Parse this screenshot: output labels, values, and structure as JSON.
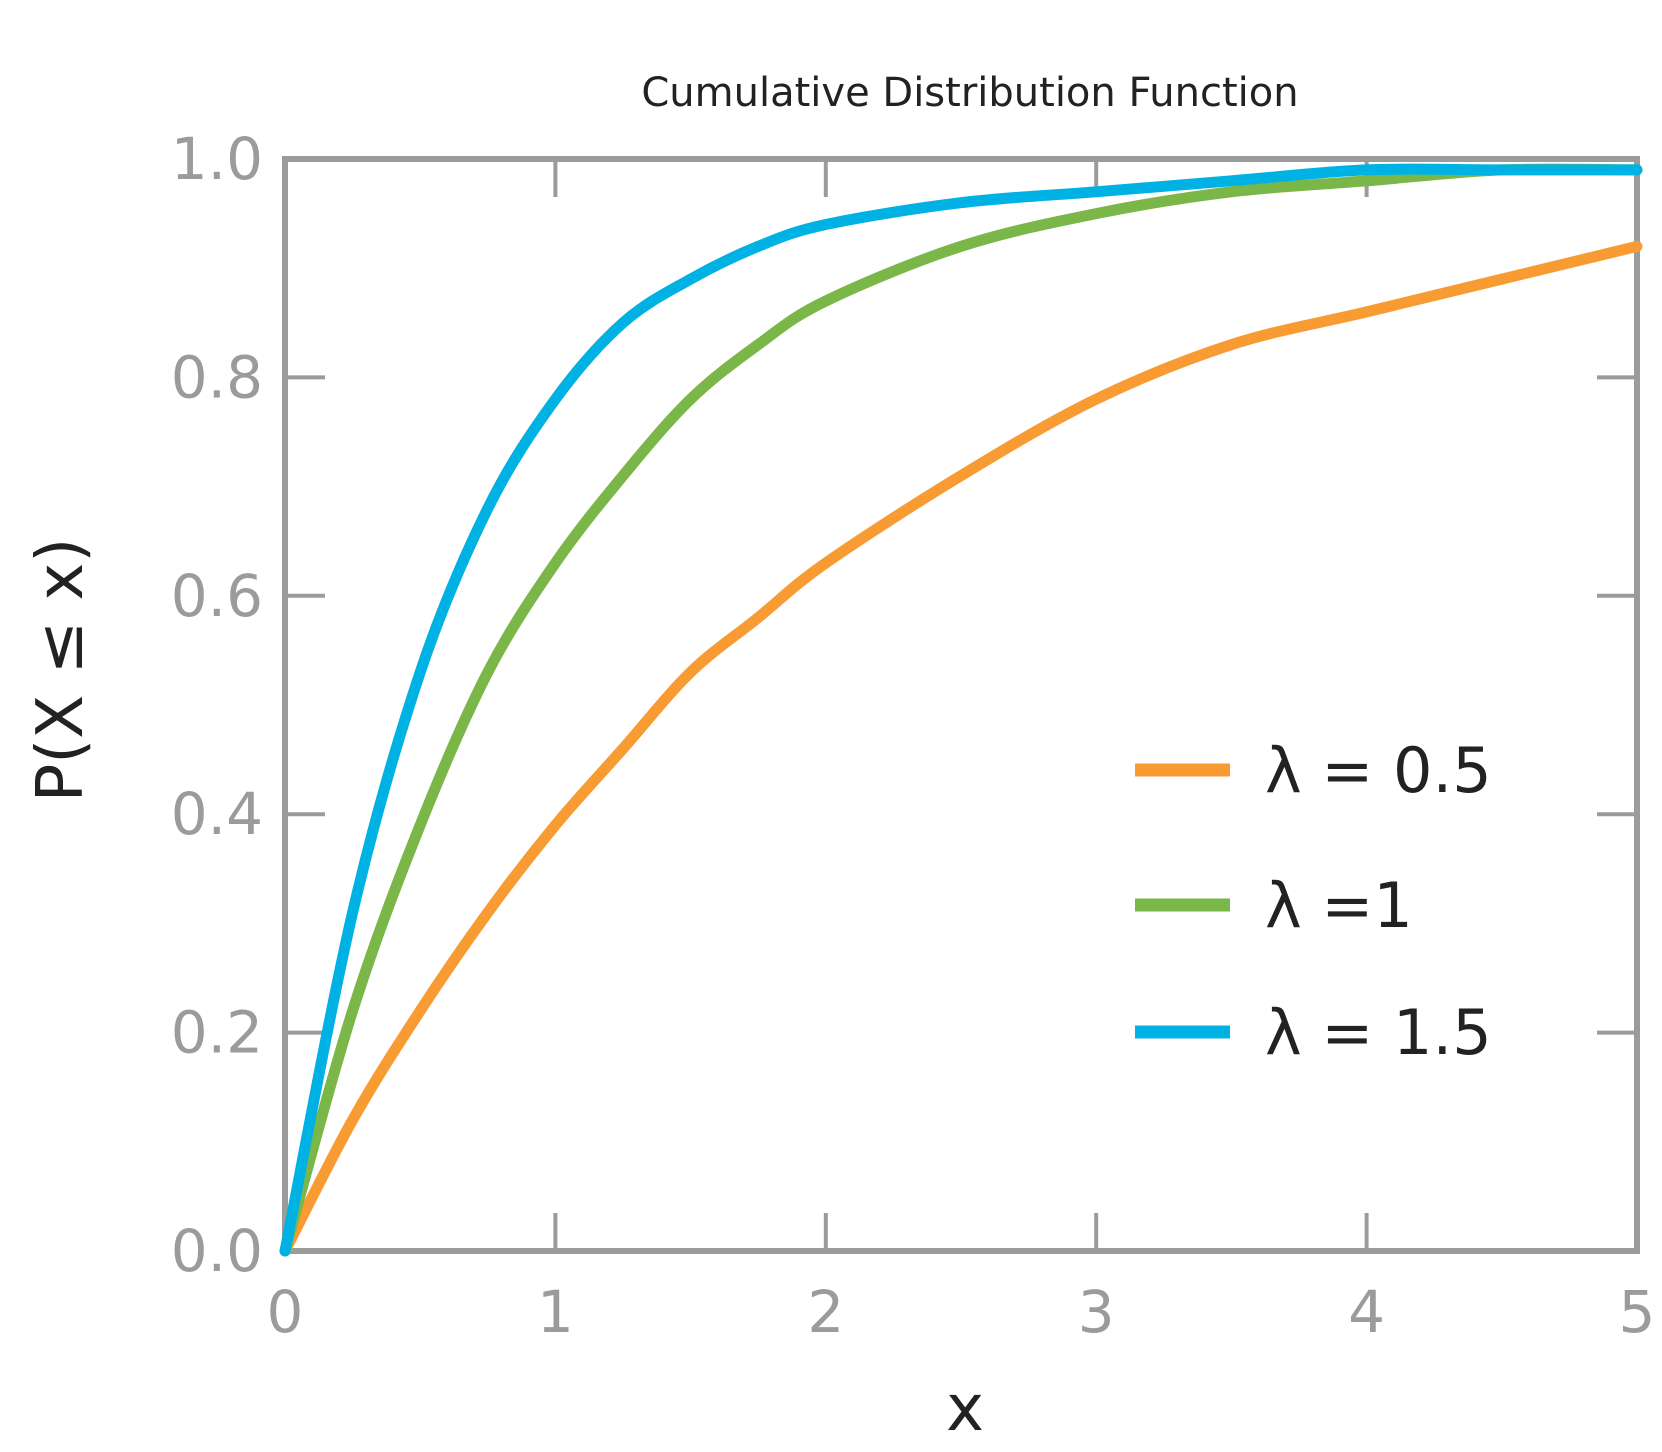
{
  "chart_data": {
    "type": "line",
    "title": "Cumulative Distribution Function",
    "xlabel": "x",
    "ylabel": "P(X ≤ x)",
    "xlim": [
      0,
      5
    ],
    "ylim": [
      0,
      1
    ],
    "x_ticks": [
      0,
      1,
      2,
      3,
      4,
      5
    ],
    "x_tick_labels": [
      "0",
      "1",
      "2",
      "3",
      "4",
      "5"
    ],
    "y_ticks": [
      0,
      0.2,
      0.4,
      0.6,
      0.8,
      1.0
    ],
    "y_tick_labels": [
      "0.0",
      "0.2",
      "0.4",
      "0.6",
      "0.8",
      "1.0"
    ],
    "grid": false,
    "legend_position": "lower-right",
    "x": [
      0,
      0.25,
      0.5,
      0.75,
      1,
      1.25,
      1.5,
      1.75,
      2,
      2.5,
      3,
      3.5,
      4,
      4.5,
      5
    ],
    "series": [
      {
        "name": "λ = 0.5",
        "color": "#f89b33",
        "values": [
          0.0,
          0.12,
          0.22,
          0.31,
          0.39,
          0.46,
          0.53,
          0.58,
          0.63,
          0.71,
          0.78,
          0.83,
          0.86,
          0.89,
          0.92
        ]
      },
      {
        "name": "λ =1",
        "color": "#7ab648",
        "values": [
          0.0,
          0.22,
          0.39,
          0.53,
          0.63,
          0.71,
          0.78,
          0.83,
          0.87,
          0.92,
          0.95,
          0.97,
          0.98,
          0.99,
          0.99
        ]
      },
      {
        "name": "λ = 1.5",
        "color": "#00b2e3",
        "values": [
          0.0,
          0.31,
          0.53,
          0.68,
          0.78,
          0.85,
          0.89,
          0.92,
          0.94,
          0.96,
          0.97,
          0.98,
          0.99,
          0.99,
          0.99
        ]
      }
    ]
  }
}
